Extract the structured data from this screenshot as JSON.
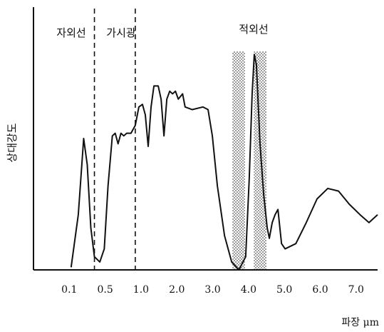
{
  "chart_data": {
    "type": "line",
    "x_label": "파장 μm",
    "y_label": "상대강도",
    "annotations": [
      "자외선",
      "가시광",
      "적외선"
    ],
    "xlim": [
      0,
      7.6
    ],
    "xticks": [
      0.1,
      0.5,
      {
        "value": 1,
        "label": "1.0"
      },
      {
        "value": 2,
        "label": "2.0"
      },
      {
        "value": 3,
        "label": "3.0"
      },
      {
        "value": 4,
        "label": "4.0"
      },
      {
        "value": 5,
        "label": "5.0"
      },
      {
        "value": 6,
        "label": "6.0"
      },
      {
        "value": 7,
        "label": "7.0"
      }
    ],
    "ylim": [
      0,
      100
    ],
    "reference_lines": [
      0.38,
      0.92
    ],
    "shaded_bands": [
      [
        3.55,
        3.9
      ],
      [
        4.15,
        4.5
      ]
    ],
    "series": [
      {
        "color": "#111111",
        "x": [
          0.12,
          0.2,
          0.26,
          0.3,
          0.34,
          0.38,
          0.44,
          0.49,
          0.54,
          0.6,
          0.64,
          0.68,
          0.72,
          0.76,
          0.8,
          0.86,
          0.92,
          0.97,
          1.04,
          1.12,
          1.2,
          1.28,
          1.36,
          1.48,
          1.56,
          1.64,
          1.72,
          1.8,
          1.88,
          1.96,
          2.04,
          2.16,
          2.23,
          2.43,
          2.73,
          2.87,
          2.99,
          3.13,
          3.33,
          3.53,
          3.73,
          3.92,
          4.02,
          4.1,
          4.16,
          4.22,
          4.32,
          4.42,
          4.52,
          4.58,
          4.66,
          4.74,
          4.82,
          4.92,
          5.02,
          5.32,
          5.61,
          5.91,
          6.21,
          6.51,
          6.81,
          7.11,
          7.36,
          7.6
        ],
        "values": [
          1,
          21,
          50,
          40,
          16,
          5,
          3,
          8,
          32,
          51,
          52,
          48,
          52,
          51,
          52,
          52,
          55,
          62,
          63,
          59,
          47,
          62,
          70,
          70,
          65,
          51,
          65,
          68,
          67,
          68,
          65,
          67,
          62,
          61,
          62,
          61,
          51,
          32,
          13,
          3,
          0,
          5,
          35,
          67,
          82,
          78,
          48,
          29,
          16,
          12,
          18,
          21,
          23,
          10,
          8,
          10,
          18,
          27,
          31,
          30,
          25,
          21,
          18,
          21
        ]
      }
    ]
  }
}
